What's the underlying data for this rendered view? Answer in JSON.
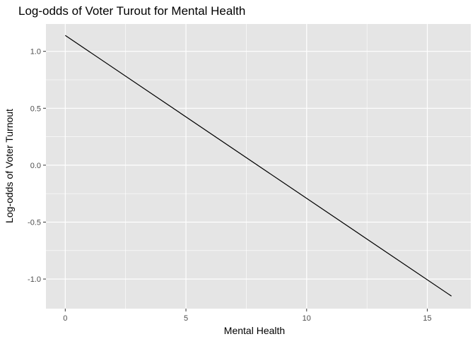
{
  "chart_data": {
    "type": "line",
    "title": "Log-odds of Voter Turout for Mental Health",
    "xlabel": "Mental Health",
    "ylabel": "Log-odds of Voter Turnout",
    "xlim": [
      -0.8,
      16.8
    ],
    "ylim": [
      -1.26,
      1.24
    ],
    "x_ticks": [
      0,
      5,
      10,
      15
    ],
    "x_tick_labels": [
      "0",
      "5",
      "10",
      "15"
    ],
    "x_minor_ticks": [
      2.5,
      7.5,
      12.5
    ],
    "y_ticks": [
      -1.0,
      -0.5,
      0.0,
      0.5,
      1.0
    ],
    "y_tick_labels": [
      "-1.0",
      "-0.5",
      "0.0",
      "0.5",
      "1.0"
    ],
    "y_minor_ticks": [
      -0.75,
      -0.25,
      0.25,
      0.75
    ],
    "grid": true,
    "series": [
      {
        "x": [
          0,
          16
        ],
        "y": [
          1.14,
          -1.15
        ]
      }
    ],
    "colors": {
      "panel_background": "#e5e5e5",
      "grid": "#ffffff",
      "line": "#000000"
    }
  }
}
